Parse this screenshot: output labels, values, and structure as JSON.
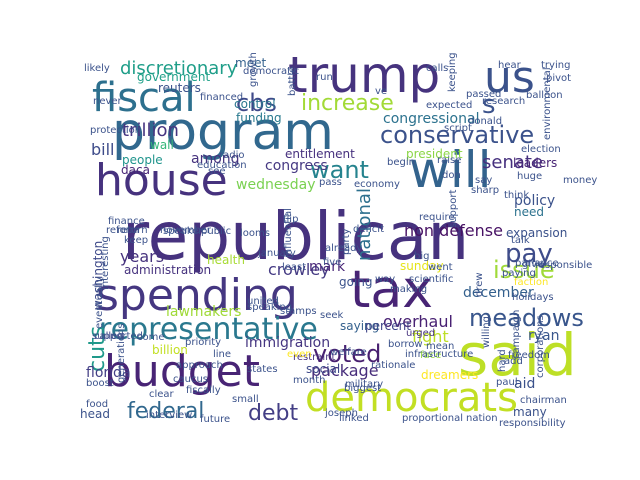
{
  "cloud": {
    "words": [
      {
        "text": "republican",
        "color": "#46327e"
      },
      {
        "text": "program",
        "color": "#31688e"
      },
      {
        "text": "trump",
        "color": "#46337e"
      },
      {
        "text": "us",
        "color": "#3b528b"
      },
      {
        "text": "spending",
        "color": "#453781"
      },
      {
        "text": "tax",
        "color": "#482475"
      },
      {
        "text": "budget",
        "color": "#482475"
      },
      {
        "text": "said",
        "color": "#bddf26"
      },
      {
        "text": "democrats",
        "color": "#c2df23"
      },
      {
        "text": "will",
        "color": "#33638d"
      },
      {
        "text": "house",
        "color": "#46327e"
      },
      {
        "text": "fiscal",
        "color": "#2d708e"
      },
      {
        "text": "s",
        "color": "#3b528b"
      },
      {
        "text": "representative",
        "color": "#2a788e"
      },
      {
        "text": "increase",
        "color": "#a2da37"
      },
      {
        "text": "conservative",
        "color": "#3b528b"
      },
      {
        "text": "cbs",
        "color": "#3e4989"
      },
      {
        "text": "issue",
        "color": "#a0da39"
      },
      {
        "text": "meadows",
        "color": "#39568c"
      },
      {
        "text": "pay",
        "color": "#3e4c8a"
      },
      {
        "text": "want",
        "color": "#25838e"
      },
      {
        "text": "voted",
        "color": "#481f70"
      },
      {
        "text": "federal",
        "color": "#31688e"
      },
      {
        "text": "debt",
        "color": "#433e85"
      },
      {
        "text": "cuts",
        "color": "#1f998a"
      },
      {
        "text": "discretionary",
        "color": "#1f9e89"
      },
      {
        "text": "trillion",
        "color": "#463480"
      },
      {
        "text": "senate",
        "color": "#46307e"
      },
      {
        "text": "non defense",
        "color": "#471164"
      },
      {
        "text": "national",
        "color": "#2d708e"
      },
      {
        "text": "policy",
        "color": "#3b528b"
      },
      {
        "text": "overhaul",
        "color": "#482173"
      },
      {
        "text": "package",
        "color": "#472d7b"
      },
      {
        "text": "december",
        "color": "#34608d"
      },
      {
        "text": "crowley",
        "color": "#443a83"
      },
      {
        "text": "years",
        "color": "#46327e"
      },
      {
        "text": "congress",
        "color": "#453882"
      },
      {
        "text": "bill",
        "color": "#3e4c8a"
      },
      {
        "text": "wednesday",
        "color": "#7ad151"
      },
      {
        "text": "lawmakers",
        "color": "#a0da39"
      },
      {
        "text": "immigration",
        "color": "#453581"
      },
      {
        "text": "fight",
        "color": "#bddf26"
      },
      {
        "text": "congressional",
        "color": "#2c728e"
      },
      {
        "text": "among",
        "color": "#46327e"
      },
      {
        "text": "government",
        "color": "#1fa088"
      },
      {
        "text": "control",
        "color": "#2a768e"
      },
      {
        "text": "funding",
        "color": "#29798e"
      },
      {
        "text": "entitlement",
        "color": "#46307e"
      },
      {
        "text": "president",
        "color": "#8bd646"
      },
      {
        "text": "mark",
        "color": "#482677"
      },
      {
        "text": "saying",
        "color": "#34608d"
      },
      {
        "text": "going",
        "color": "#3b528b"
      },
      {
        "text": "sunday",
        "color": "#e5e419"
      },
      {
        "text": "administration",
        "color": "#46327e"
      },
      {
        "text": "washington",
        "color": "#3e4989"
      },
      {
        "text": "billion",
        "color": "#c2df23"
      },
      {
        "text": "florida",
        "color": "#433e85"
      },
      {
        "text": "social",
        "color": "#3e4989"
      },
      {
        "text": "percent",
        "color": "#404688"
      },
      {
        "text": "ryan",
        "color": "#39568c"
      },
      {
        "text": "aid",
        "color": "#3b528b"
      },
      {
        "text": "many",
        "color": "#3b528b"
      },
      {
        "text": "daca",
        "color": "#482677"
      },
      {
        "text": "wall",
        "color": "#35b779"
      },
      {
        "text": "people",
        "color": "#1f948c"
      },
      {
        "text": "meet",
        "color": "#34618d"
      },
      {
        "text": "reuters",
        "color": "#3b528b"
      },
      {
        "text": "leaders",
        "color": "#482475"
      },
      {
        "text": "need",
        "color": "#2c728e"
      },
      {
        "text": "expansion",
        "color": "#3b528b"
      },
      {
        "text": "health",
        "color": "#a8db34"
      },
      {
        "text": "called",
        "color": "#3f4788"
      },
      {
        "text": "month",
        "color": "#3b528b"
      },
      {
        "text": "military",
        "color": "#3b528b"
      },
      {
        "text": "restraint",
        "color": "#46307e"
      },
      {
        "text": "speaking",
        "color": "#3b528b"
      },
      {
        "text": "dreamers",
        "color": "#fde725"
      },
      {
        "text": "face",
        "color": "#95d840"
      },
      {
        "text": "urged",
        "color": "#46327e"
      },
      {
        "text": "return",
        "color": "#3b528b"
      },
      {
        "text": "november",
        "color": "#3b528b"
      },
      {
        "text": "public",
        "color": "#3b528b"
      },
      {
        "text": "looms",
        "color": "#3b528b"
      },
      {
        "text": "keep",
        "color": "#3b528b"
      },
      {
        "text": "flip",
        "color": "#3b528b"
      },
      {
        "text": "deficit",
        "color": "#3b528b"
      },
      {
        "text": "party",
        "color": "#3b528b"
      },
      {
        "text": "seek",
        "color": "#3b528b"
      },
      {
        "text": "line",
        "color": "#3b528b"
      },
      {
        "text": "even",
        "color": "#fde725"
      },
      {
        "text": "approach",
        "color": "#3b528b"
      },
      {
        "text": "infrastructure",
        "color": "#3b528b"
      },
      {
        "text": "proportional",
        "color": "#3b528b"
      },
      {
        "text": "nation",
        "color": "#3b528b"
      },
      {
        "text": "linked",
        "color": "#3b528b"
      },
      {
        "text": "hard",
        "color": "#3b528b"
      },
      {
        "text": "huge",
        "color": "#3b528b"
      },
      {
        "text": "talk",
        "color": "#3b528b"
      },
      {
        "text": "faction",
        "color": "#fde725"
      },
      {
        "text": "give",
        "color": "#3b528b"
      },
      {
        "text": "holidays",
        "color": "#3b528b"
      },
      {
        "text": "freedom",
        "color": "#3b528b"
      },
      {
        "text": "chairman",
        "color": "#3b528b"
      },
      {
        "text": "campaign",
        "color": "#3b528b"
      },
      {
        "text": "election",
        "color": "#3b528b"
      },
      {
        "text": "likely",
        "color": "#3b528b"
      },
      {
        "text": "battle",
        "color": "#3b528b"
      },
      {
        "text": "run",
        "color": "#3b528b"
      },
      {
        "text": "expected",
        "color": "#3b528b"
      },
      {
        "text": "passed",
        "color": "#3b528b"
      },
      {
        "text": "trying",
        "color": "#3b528b"
      },
      {
        "text": "pivot",
        "color": "#3b528b"
      },
      {
        "text": "hear",
        "color": "#3b528b"
      },
      {
        "text": "donald",
        "color": "#3b528b"
      },
      {
        "text": "research",
        "color": "#3b528b"
      },
      {
        "text": "balloon",
        "color": "#3b528b"
      },
      {
        "text": "environmental",
        "color": "#3b528b"
      },
      {
        "text": "education",
        "color": "#3b528b"
      },
      {
        "text": "financed",
        "color": "#3b528b"
      },
      {
        "text": "protection",
        "color": "#3b528b"
      },
      {
        "text": "begin",
        "color": "#3b528b"
      },
      {
        "text": "raise",
        "color": "#3b528b"
      },
      {
        "text": "say",
        "color": "#3b528b"
      },
      {
        "text": "pass",
        "color": "#3b528b"
      },
      {
        "text": "economy",
        "color": "#3b528b"
      },
      {
        "text": "require",
        "color": "#3b528b"
      },
      {
        "text": "support",
        "color": "#3b528b"
      },
      {
        "text": "scientific",
        "color": "#3b528b"
      },
      {
        "text": "making",
        "color": "#3b528b"
      },
      {
        "text": "way",
        "color": "#3b528b"
      },
      {
        "text": "big",
        "color": "#3b528b"
      },
      {
        "text": "january",
        "color": "#3b528b"
      },
      {
        "text": "interesting",
        "color": "#3b528b"
      },
      {
        "text": "finance",
        "color": "#3b528b"
      },
      {
        "text": "reform",
        "color": "#3b528b"
      },
      {
        "text": "speaker",
        "color": "#3b528b"
      },
      {
        "text": "influential",
        "color": "#3b528b"
      },
      {
        "text": "already",
        "color": "#3b528b"
      },
      {
        "text": "eventually",
        "color": "#3b528b"
      },
      {
        "text": "supported",
        "color": "#3b528b"
      },
      {
        "text": "responsible",
        "color": "#3b528b"
      },
      {
        "text": "parlance",
        "color": "#3b528b"
      },
      {
        "text": "paying",
        "color": "#3b528b"
      },
      {
        "text": "drew",
        "color": "#3b528b"
      },
      {
        "text": "went",
        "color": "#3b528b"
      },
      {
        "text": "stamps",
        "color": "#3b528b"
      },
      {
        "text": "least",
        "color": "#3b528b"
      },
      {
        "text": "welfare",
        "color": "#3b528b"
      },
      {
        "text": "rationale",
        "color": "#3b528b"
      },
      {
        "text": "borrow",
        "color": "#3b528b"
      },
      {
        "text": "mean",
        "color": "#3b528b"
      },
      {
        "text": "willing",
        "color": "#3b528b"
      },
      {
        "text": "add",
        "color": "#3b528b"
      },
      {
        "text": "paul",
        "color": "#3b528b"
      },
      {
        "text": "corporations",
        "color": "#3b528b"
      },
      {
        "text": "responsibility",
        "color": "#3b528b"
      },
      {
        "text": "joseph",
        "color": "#3b528b"
      },
      {
        "text": "biggest",
        "color": "#3b528b"
      },
      {
        "text": "caucus",
        "color": "#3b528b"
      },
      {
        "text": "fiscally",
        "color": "#3b528b"
      },
      {
        "text": "small",
        "color": "#3b528b"
      },
      {
        "text": "clear",
        "color": "#3b528b"
      },
      {
        "text": "future",
        "color": "#3b528b"
      },
      {
        "text": "interview",
        "color": "#3b528b"
      },
      {
        "text": "generations",
        "color": "#3b528b"
      },
      {
        "text": "boost",
        "color": "#3b528b"
      },
      {
        "text": "food",
        "color": "#3b528b"
      },
      {
        "text": "head",
        "color": "#3b528b"
      },
      {
        "text": "priority",
        "color": "#3b528b"
      },
      {
        "text": "come",
        "color": "#3b528b"
      },
      {
        "text": "states",
        "color": "#3b528b"
      },
      {
        "text": "democratic",
        "color": "#3b528b"
      },
      {
        "text": "united",
        "color": "#3b528b"
      },
      {
        "text": "radio",
        "color": "#3b528b"
      },
      {
        "text": "growth",
        "color": "#3b528b"
      },
      {
        "text": "calls",
        "color": "#3b528b"
      },
      {
        "text": "keeping",
        "color": "#3b528b"
      },
      {
        "text": "script",
        "color": "#3b528b"
      },
      {
        "text": "money",
        "color": "#3b528b"
      },
      {
        "text": "sharp",
        "color": "#3b528b"
      },
      {
        "text": "think",
        "color": "#3b528b"
      },
      {
        "text": "see",
        "color": "#3b528b"
      },
      {
        "text": "never",
        "color": "#3b528b"
      },
      {
        "text": "don",
        "color": "#3b528b"
      },
      {
        "text": "five",
        "color": "#3b528b"
      },
      {
        "text": "ve",
        "color": "#3b528b"
      }
    ]
  }
}
